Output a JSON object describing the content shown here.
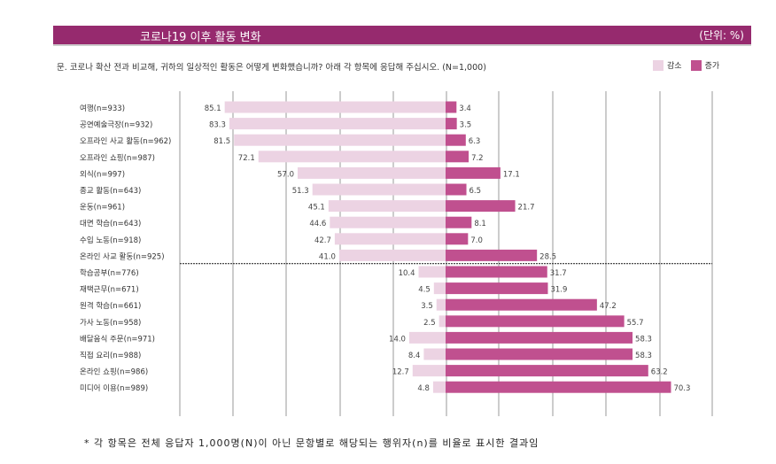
{
  "header": {
    "title": "코로나19 이후 활동 변화",
    "unit": "(단위: %)"
  },
  "question": "문. 코로나 확산 전과 비교해, 귀하의 일상적인 활동은 어떻게 변화했습니까? 아래 각 항목에 응답해 주십시오. (N=1,000)",
  "footnote": "* 각 항목은 전체 응답자 1,000명(N)이 아닌 문항별로 해당되는 행위자(n)를 비율로 표시한 결과임",
  "colors": {
    "header": "#962a6e",
    "decrease": "#ecd3e3",
    "increase": "#c0508f"
  },
  "chart_data": {
    "type": "bar",
    "orientation": "horizontal-diverging",
    "title": "코로나19 이후 활동 변화",
    "unit": "%",
    "legend": {
      "placement": "top-right"
    },
    "grid": true,
    "categories": [
      "여행(n=933)",
      "공연예술극장(n=932)",
      "오프라인 사교 활동(n=962)",
      "오프라인 쇼핑(n=987)",
      "외식(n=997)",
      "종교 활동(n=643)",
      "운동(n=961)",
      "대면 학습(n=643)",
      "수입 노동(n=918)",
      "온라인 사교 활동(n=925)",
      "학습공부(n=776)",
      "재택근무(n=671)",
      "원격 학습(n=661)",
      "가사 노동(n=958)",
      "배달음식 주문(n=971)",
      "직접 요리(n=988)",
      "온라인 쇼핑(n=986)",
      "미디어 이용(n=989)"
    ],
    "series": [
      {
        "name": "감소",
        "values": [
          85.1,
          83.3,
          81.5,
          72.1,
          57.0,
          51.3,
          45.1,
          44.6,
          42.7,
          41.0,
          10.4,
          4.5,
          3.5,
          2.5,
          14.0,
          8.4,
          12.7,
          4.8
        ]
      },
      {
        "name": "증가",
        "values": [
          3.4,
          3.5,
          6.3,
          7.2,
          17.1,
          6.5,
          21.7,
          8.1,
          7.0,
          28.5,
          31.7,
          31.9,
          47.2,
          55.7,
          58.3,
          58.3,
          63.2,
          70.3
        ]
      }
    ]
  }
}
